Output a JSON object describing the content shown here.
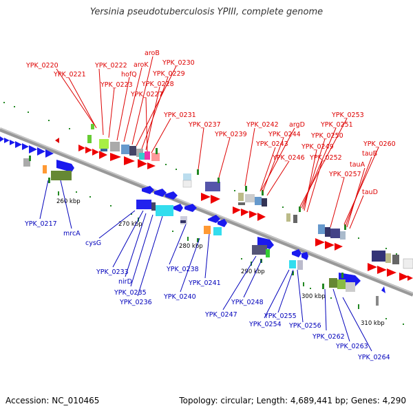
{
  "title": "Yersinia pseudotuberculosis YPIII, complete genome",
  "footer": {
    "accession": "Accession: NC_010465",
    "summary": "Topology: circular; Length: 4,689,441 bp; Genes: 4,290"
  },
  "colors": {
    "top_labels": "#dd0000",
    "bottom_labels": "#0000bb",
    "backbone": "#888888"
  },
  "ticks": [
    "260 kbp",
    "270 kbp",
    "280 kbp",
    "290 kbp",
    "300 kbp",
    "310 kbp"
  ],
  "top_genes": [
    "YPK_0220",
    "YPK_0221",
    "YPK_0222",
    "YPK_0223",
    "hofQ",
    "aroK",
    "aroB",
    "YPK_0230",
    "YPK_0229",
    "YPK_0228",
    "YPK_0227",
    "YPK_0231",
    "YPK_0237",
    "YPK_0239",
    "YPK_0242",
    "argD",
    "YPK_0244",
    "YPK_0243",
    "YPK_0246",
    "YPK_0253",
    "YPK_0251",
    "YPK_0250",
    "YPK_0249",
    "YPK_0252",
    "YPK_0260",
    "tauB",
    "tauA",
    "YPK_0257",
    "tauD"
  ],
  "bottom_genes": [
    "YPK_0217",
    "mrcA",
    "cysG",
    "YPK_0233",
    "nirD",
    "YPK_0235",
    "YPK_0236",
    "YPK_0238",
    "YPK_0240",
    "YPK_0241",
    "YPK_0247",
    "YPK_0248",
    "YPK_0254",
    "YPK_0255",
    "YPK_0256",
    "YPK_0262",
    "YPK_0263",
    "YPK_0264"
  ]
}
